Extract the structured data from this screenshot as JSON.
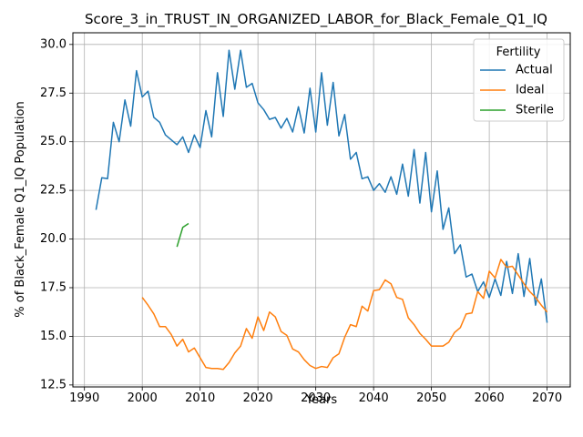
{
  "chart_data": {
    "type": "line",
    "title": "Score_3_in_TRUST_IN_ORGANIZED_LABOR_for_Black_Female_Q1_IQ",
    "xlabel": "Years",
    "ylabel": "% of Black_Female Q1_IQ Population",
    "xlim": [
      1988,
      2074
    ],
    "ylim": [
      12.4,
      30.6
    ],
    "xticks": [
      1990,
      2000,
      2010,
      2020,
      2030,
      2040,
      2050,
      2060,
      2070
    ],
    "yticks": [
      12.5,
      15.0,
      17.5,
      20.0,
      22.5,
      25.0,
      27.5,
      30.0
    ],
    "xtick_labels": [
      "1990",
      "2000",
      "2010",
      "2020",
      "2030",
      "2040",
      "2050",
      "2060",
      "2070"
    ],
    "ytick_labels": [
      "12.5",
      "15.0",
      "17.5",
      "20.0",
      "22.5",
      "25.0",
      "27.5",
      "30.0"
    ],
    "grid": true,
    "legend": {
      "title": "Fertility",
      "placement": "upper-right"
    },
    "series": [
      {
        "name": "Actual",
        "color": "#1f77b4",
        "points": [
          [
            1992,
            21.5
          ],
          [
            1993,
            23.15
          ],
          [
            1994,
            23.1
          ],
          [
            1995,
            26.0
          ],
          [
            1996,
            25.0
          ],
          [
            1997,
            27.15
          ],
          [
            1998,
            25.8
          ],
          [
            1999,
            28.65
          ],
          [
            2000,
            27.3
          ],
          [
            2001,
            27.6
          ],
          [
            2002,
            26.25
          ],
          [
            2003,
            26.0
          ],
          [
            2004,
            25.35
          ],
          [
            2005,
            25.1
          ],
          [
            2006,
            24.85
          ],
          [
            2007,
            25.25
          ],
          [
            2008,
            24.45
          ],
          [
            2009,
            25.35
          ],
          [
            2010,
            24.7
          ],
          [
            2011,
            26.6
          ],
          [
            2012,
            25.25
          ],
          [
            2013,
            28.55
          ],
          [
            2014,
            26.3
          ],
          [
            2015,
            29.7
          ],
          [
            2016,
            27.7
          ],
          [
            2017,
            29.7
          ],
          [
            2018,
            27.8
          ],
          [
            2019,
            28.0
          ],
          [
            2020,
            27.0
          ],
          [
            2021,
            26.65
          ],
          [
            2022,
            26.15
          ],
          [
            2023,
            26.25
          ],
          [
            2024,
            25.7
          ],
          [
            2025,
            26.2
          ],
          [
            2026,
            25.5
          ],
          [
            2027,
            26.8
          ],
          [
            2028,
            25.45
          ],
          [
            2029,
            27.75
          ],
          [
            2030,
            25.5
          ],
          [
            2031,
            28.55
          ],
          [
            2032,
            25.85
          ],
          [
            2033,
            28.05
          ],
          [
            2034,
            25.3
          ],
          [
            2035,
            26.4
          ],
          [
            2036,
            24.1
          ],
          [
            2037,
            24.45
          ],
          [
            2038,
            23.1
          ],
          [
            2039,
            23.2
          ],
          [
            2040,
            22.5
          ],
          [
            2041,
            22.85
          ],
          [
            2042,
            22.4
          ],
          [
            2043,
            23.2
          ],
          [
            2044,
            22.3
          ],
          [
            2045,
            23.85
          ],
          [
            2046,
            22.2
          ],
          [
            2047,
            24.6
          ],
          [
            2048,
            21.85
          ],
          [
            2049,
            24.45
          ],
          [
            2050,
            21.4
          ],
          [
            2051,
            23.5
          ],
          [
            2052,
            20.5
          ],
          [
            2053,
            21.6
          ],
          [
            2054,
            19.25
          ],
          [
            2055,
            19.7
          ],
          [
            2056,
            18.05
          ],
          [
            2057,
            18.2
          ],
          [
            2058,
            17.3
          ],
          [
            2059,
            17.8
          ],
          [
            2060,
            17.0
          ],
          [
            2061,
            17.95
          ],
          [
            2062,
            17.1
          ],
          [
            2063,
            18.85
          ],
          [
            2064,
            17.2
          ],
          [
            2065,
            19.25
          ],
          [
            2066,
            17.05
          ],
          [
            2067,
            19.0
          ],
          [
            2068,
            16.6
          ],
          [
            2069,
            17.95
          ],
          [
            2070,
            15.7
          ]
        ]
      },
      {
        "name": "Ideal",
        "color": "#ff7f0e",
        "points": [
          [
            2000,
            17.0
          ],
          [
            2001,
            16.6
          ],
          [
            2002,
            16.15
          ],
          [
            2003,
            15.5
          ],
          [
            2004,
            15.5
          ],
          [
            2005,
            15.1
          ],
          [
            2006,
            14.5
          ],
          [
            2007,
            14.85
          ],
          [
            2008,
            14.2
          ],
          [
            2009,
            14.4
          ],
          [
            2010,
            13.9
          ],
          [
            2011,
            13.4
          ],
          [
            2012,
            13.35
          ],
          [
            2013,
            13.35
          ],
          [
            2014,
            13.3
          ],
          [
            2015,
            13.65
          ],
          [
            2016,
            14.15
          ],
          [
            2017,
            14.5
          ],
          [
            2018,
            15.4
          ],
          [
            2019,
            14.9
          ],
          [
            2020,
            16.0
          ],
          [
            2021,
            15.3
          ],
          [
            2022,
            16.25
          ],
          [
            2023,
            16.0
          ],
          [
            2024,
            15.25
          ],
          [
            2025,
            15.05
          ],
          [
            2026,
            14.35
          ],
          [
            2027,
            14.2
          ],
          [
            2028,
            13.8
          ],
          [
            2029,
            13.5
          ],
          [
            2030,
            13.35
          ],
          [
            2031,
            13.45
          ],
          [
            2032,
            13.4
          ],
          [
            2033,
            13.9
          ],
          [
            2034,
            14.1
          ],
          [
            2035,
            14.95
          ],
          [
            2036,
            15.6
          ],
          [
            2037,
            15.5
          ],
          [
            2038,
            16.55
          ],
          [
            2039,
            16.3
          ],
          [
            2040,
            17.35
          ],
          [
            2041,
            17.4
          ],
          [
            2042,
            17.9
          ],
          [
            2043,
            17.7
          ],
          [
            2044,
            17.0
          ],
          [
            2045,
            16.9
          ],
          [
            2046,
            15.95
          ],
          [
            2047,
            15.6
          ],
          [
            2048,
            15.15
          ],
          [
            2049,
            14.85
          ],
          [
            2050,
            14.5
          ],
          [
            2051,
            14.5
          ],
          [
            2052,
            14.5
          ],
          [
            2053,
            14.7
          ],
          [
            2054,
            15.2
          ],
          [
            2055,
            15.45
          ],
          [
            2056,
            16.15
          ],
          [
            2057,
            16.2
          ],
          [
            2058,
            17.3
          ],
          [
            2059,
            16.95
          ],
          [
            2060,
            18.35
          ],
          [
            2061,
            18.0
          ],
          [
            2062,
            18.95
          ],
          [
            2063,
            18.55
          ],
          [
            2064,
            18.6
          ],
          [
            2065,
            18.15
          ],
          [
            2066,
            17.7
          ],
          [
            2067,
            17.3
          ],
          [
            2068,
            17.0
          ],
          [
            2069,
            16.6
          ],
          [
            2070,
            16.25
          ]
        ]
      },
      {
        "name": "Sterile",
        "color": "#2ca02c",
        "points": [
          [
            2006,
            19.6
          ],
          [
            2007,
            20.6
          ],
          [
            2008,
            20.8
          ]
        ]
      }
    ]
  }
}
